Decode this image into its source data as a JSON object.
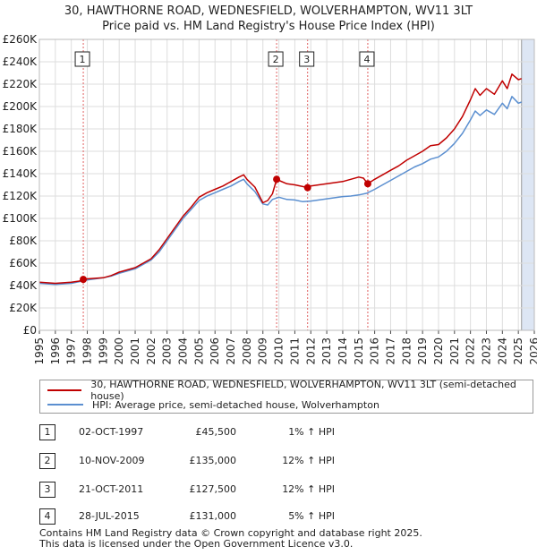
{
  "title": "30, HAWTHORNE ROAD, WEDNESFIELD, WOLVERHAMPTON, WV11 3LT",
  "subtitle": "Price paid vs. HM Land Registry's House Price Index (HPI)",
  "legend": {
    "property_label": "30, HAWTHORNE ROAD, WEDNESFIELD, WOLVERHAMPTON, WV11 3LT (semi-detached house)",
    "hpi_label": "HPI: Average price, semi-detached house, Wolverhampton"
  },
  "colors": {
    "property": "#c00000",
    "hpi": "#5b8fd0",
    "event_line": "#e06060",
    "shade": "#dde6f4",
    "grid": "#dddddd"
  },
  "sales": [
    {
      "num": "1",
      "date": "02-OCT-1997",
      "price": "£45,500",
      "hpi": "1% ↑ HPI"
    },
    {
      "num": "2",
      "date": "10-NOV-2009",
      "price": "£135,000",
      "hpi": "12% ↑ HPI"
    },
    {
      "num": "3",
      "date": "21-OCT-2011",
      "price": "£127,500",
      "hpi": "12% ↑ HPI"
    },
    {
      "num": "4",
      "date": "28-JUL-2015",
      "price": "£131,000",
      "hpi": "5% ↑ HPI"
    }
  ],
  "footer": {
    "line1": "Contains HM Land Registry data © Crown copyright and database right 2025.",
    "line2": "This data is licensed under the Open Government Licence v3.0."
  },
  "chart_data": {
    "type": "line",
    "title": "30, HAWTHORNE ROAD, WEDNESFIELD, WOLVERHAMPTON, WV11 3LT",
    "subtitle": "Price paid vs. HM Land Registry's House Price Index (HPI)",
    "xlabel": "",
    "ylabel": "",
    "xlim": [
      1995,
      2026
    ],
    "ylim": [
      0,
      260000
    ],
    "grid": true,
    "legend_position": "bottom",
    "y_ticks": [
      {
        "value": 0,
        "label": "£0"
      },
      {
        "value": 20000,
        "label": "£20K"
      },
      {
        "value": 40000,
        "label": "£40K"
      },
      {
        "value": 60000,
        "label": "£60K"
      },
      {
        "value": 80000,
        "label": "£80K"
      },
      {
        "value": 100000,
        "label": "£100K"
      },
      {
        "value": 120000,
        "label": "£120K"
      },
      {
        "value": 140000,
        "label": "£140K"
      },
      {
        "value": 160000,
        "label": "£160K"
      },
      {
        "value": 180000,
        "label": "£180K"
      },
      {
        "value": 200000,
        "label": "£200K"
      },
      {
        "value": 220000,
        "label": "£220K"
      },
      {
        "value": 240000,
        "label": "£240K"
      },
      {
        "value": 260000,
        "label": "£260K"
      }
    ],
    "x_ticks": [
      "1995",
      "1996",
      "1997",
      "1998",
      "1999",
      "2000",
      "2001",
      "2002",
      "2003",
      "2004",
      "2005",
      "2006",
      "2007",
      "2008",
      "2009",
      "2010",
      "2011",
      "2012",
      "2013",
      "2014",
      "2015",
      "2016",
      "2017",
      "2018",
      "2019",
      "2020",
      "2021",
      "2022",
      "2023",
      "2024",
      "2025",
      "2026"
    ],
    "shaded_region": [
      2025.2,
      2026
    ],
    "events": [
      {
        "label": "1",
        "x": 1997.75,
        "value": 45500
      },
      {
        "label": "2",
        "x": 2009.86,
        "value": 135000
      },
      {
        "label": "3",
        "x": 2011.8,
        "value": 127500
      },
      {
        "label": "4",
        "x": 2015.57,
        "value": 131000
      }
    ],
    "series": [
      {
        "name": "30, HAWTHORNE ROAD, WEDNESFIELD, WOLVERHAMPTON, WV11 3LT (semi-detached house)",
        "x": [
          1995,
          1995.5,
          1996,
          1996.5,
          1997,
          1997.5,
          1997.75,
          1998,
          1998.5,
          1999,
          1999.5,
          2000,
          2000.5,
          2001,
          2001.5,
          2002,
          2002.5,
          2003,
          2003.5,
          2004,
          2004.5,
          2005,
          2005.5,
          2006,
          2006.5,
          2007,
          2007.5,
          2007.8,
          2008,
          2008.5,
          2009,
          2009.3,
          2009.6,
          2009.86,
          2010,
          2010.5,
          2011,
          2011.5,
          2011.8,
          2012,
          2012.5,
          2013,
          2013.5,
          2014,
          2014.5,
          2015,
          2015.3,
          2015.57,
          2016,
          2016.5,
          2017,
          2017.5,
          2018,
          2018.5,
          2019,
          2019.5,
          2020,
          2020.5,
          2021,
          2021.5,
          2022,
          2022.3,
          2022.6,
          2023,
          2023.5,
          2024,
          2024.3,
          2024.6,
          2025,
          2025.2
        ],
        "values": [
          43000,
          42500,
          42000,
          42500,
          43000,
          44000,
          45500,
          46000,
          46500,
          47000,
          49000,
          52000,
          54000,
          56000,
          60000,
          64000,
          72000,
          82000,
          92000,
          102000,
          110000,
          119000,
          123000,
          126000,
          129000,
          133000,
          137000,
          139000,
          135000,
          128000,
          114000,
          116000,
          122000,
          135000,
          134000,
          131000,
          130000,
          128500,
          127500,
          129000,
          130000,
          131000,
          132000,
          133000,
          135000,
          137000,
          136000,
          131000,
          135000,
          139000,
          143000,
          147000,
          152000,
          156000,
          160000,
          165000,
          166000,
          172000,
          180000,
          191000,
          206000,
          216000,
          210000,
          216000,
          211000,
          223000,
          216000,
          229000,
          224000,
          225000
        ]
      },
      {
        "name": "HPI: Average price, semi-detached house, Wolverhampton",
        "x": [
          1995,
          1995.5,
          1996,
          1996.5,
          1997,
          1997.5,
          1998,
          1998.5,
          1999,
          1999.5,
          2000,
          2000.5,
          2001,
          2001.5,
          2002,
          2002.5,
          2003,
          2003.5,
          2004,
          2004.5,
          2005,
          2005.5,
          2006,
          2006.5,
          2007,
          2007.5,
          2007.8,
          2008,
          2008.5,
          2009,
          2009.3,
          2009.6,
          2010,
          2010.5,
          2011,
          2011.5,
          2012,
          2012.5,
          2013,
          2013.5,
          2014,
          2014.5,
          2015,
          2015.5,
          2016,
          2016.5,
          2017,
          2017.5,
          2018,
          2018.5,
          2019,
          2019.5,
          2020,
          2020.5,
          2021,
          2021.5,
          2022,
          2022.3,
          2022.6,
          2023,
          2023.5,
          2024,
          2024.3,
          2024.6,
          2025,
          2025.2
        ],
        "values": [
          42000,
          41500,
          41000,
          41500,
          42000,
          43500,
          45000,
          46000,
          47000,
          48500,
          51000,
          53000,
          55000,
          59000,
          63000,
          70000,
          80000,
          90000,
          100000,
          108000,
          116000,
          120000,
          123000,
          126000,
          129000,
          133000,
          135000,
          131000,
          124000,
          113000,
          112000,
          117000,
          119000,
          117000,
          116500,
          115000,
          115500,
          116500,
          117500,
          118500,
          119500,
          120000,
          121000,
          122500,
          126000,
          130000,
          134000,
          138000,
          142000,
          146000,
          149000,
          153000,
          155000,
          160000,
          167000,
          176000,
          188000,
          196000,
          192000,
          197000,
          193000,
          203000,
          198000,
          209000,
          203000,
          204000
        ]
      }
    ]
  }
}
